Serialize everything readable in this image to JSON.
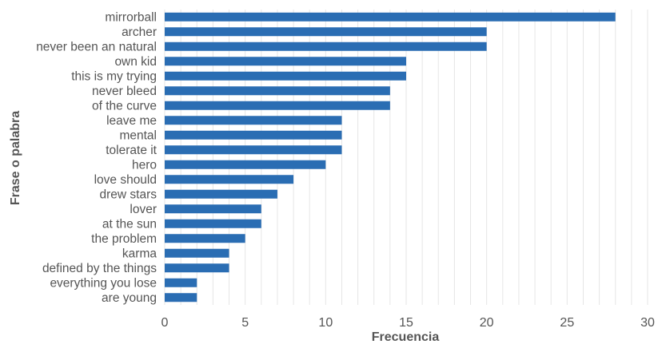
{
  "chart_data": {
    "type": "bar",
    "orientation": "horizontal",
    "categories": [
      "mirrorball",
      "archer",
      "never been an natural",
      "own kid",
      "this is my trying",
      "never bleed",
      "of the curve",
      "leave me",
      "mental",
      "tolerate it",
      "hero",
      "love should",
      "drew stars",
      "lover",
      "at the sun",
      "the problem",
      "karma",
      "defined by the things",
      "everything you lose",
      "are young"
    ],
    "values": [
      28,
      20,
      20,
      15,
      15,
      14,
      14,
      11,
      11,
      11,
      10,
      8,
      7,
      6,
      6,
      5,
      4,
      4,
      2,
      2
    ],
    "xlabel": "Frecuencia",
    "ylabel": "Frase o palabra",
    "xlim": [
      0,
      30
    ],
    "xticks": [
      0,
      5,
      10,
      15,
      20,
      25,
      30
    ],
    "grid": "vertical",
    "bar_color": "#2a6db3"
  }
}
